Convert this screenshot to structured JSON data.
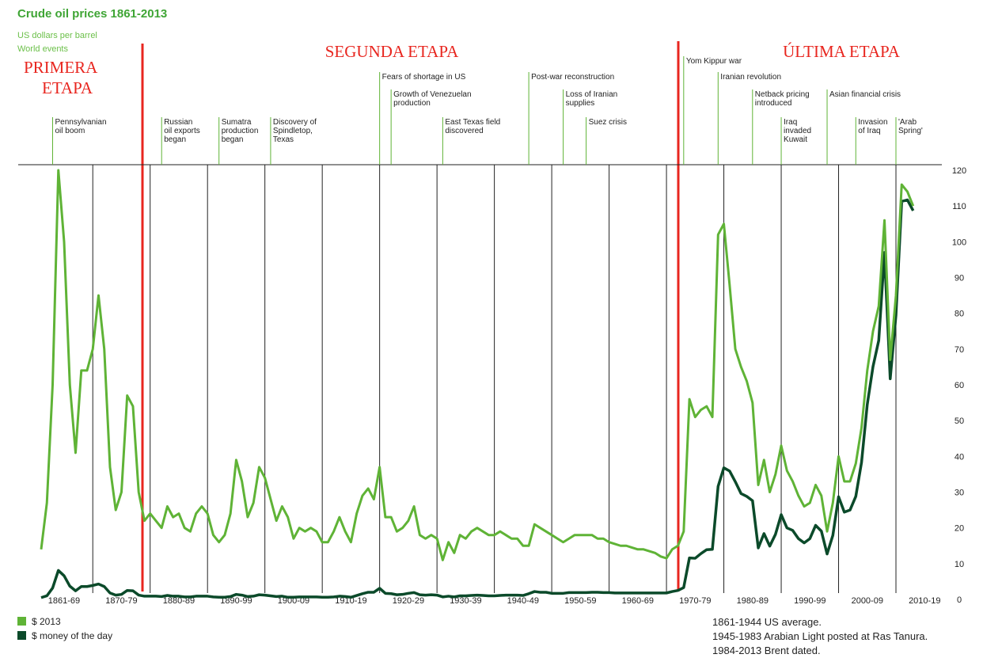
{
  "chart_data": {
    "type": "line",
    "title": "Crude oil prices 1861-2013",
    "subtitle": "US dollars per barrel",
    "subtitle2": "World events",
    "x": [
      1861,
      1862,
      1863,
      1864,
      1865,
      1866,
      1867,
      1868,
      1869,
      1870,
      1871,
      1872,
      1873,
      1874,
      1875,
      1876,
      1877,
      1878,
      1879,
      1880,
      1881,
      1882,
      1883,
      1884,
      1885,
      1886,
      1887,
      1888,
      1889,
      1890,
      1891,
      1892,
      1893,
      1894,
      1895,
      1896,
      1897,
      1898,
      1899,
      1900,
      1901,
      1902,
      1903,
      1904,
      1905,
      1906,
      1907,
      1908,
      1909,
      1910,
      1911,
      1912,
      1913,
      1914,
      1915,
      1916,
      1917,
      1918,
      1919,
      1920,
      1921,
      1922,
      1923,
      1924,
      1925,
      1926,
      1927,
      1928,
      1929,
      1930,
      1931,
      1932,
      1933,
      1934,
      1935,
      1936,
      1937,
      1938,
      1939,
      1940,
      1941,
      1942,
      1943,
      1944,
      1945,
      1946,
      1947,
      1948,
      1949,
      1950,
      1951,
      1952,
      1953,
      1954,
      1955,
      1956,
      1957,
      1958,
      1959,
      1960,
      1961,
      1962,
      1963,
      1964,
      1965,
      1966,
      1967,
      1968,
      1969,
      1970,
      1971,
      1972,
      1973,
      1974,
      1975,
      1976,
      1977,
      1978,
      1979,
      1980,
      1981,
      1982,
      1983,
      1984,
      1985,
      1986,
      1987,
      1988,
      1989,
      1990,
      1991,
      1992,
      1993,
      1994,
      1995,
      1996,
      1997,
      1998,
      1999,
      2000,
      2001,
      2002,
      2003,
      2004,
      2005,
      2006,
      2007,
      2008,
      2009,
      2010,
      2011,
      2012,
      2013
    ],
    "series": [
      {
        "name": "$ 2013",
        "color": "#5fb336",
        "values": [
          14,
          27,
          60,
          120,
          100,
          60,
          41,
          64,
          64,
          70,
          85,
          70,
          37,
          25,
          30,
          57,
          54,
          30,
          22,
          24,
          22,
          20,
          26,
          23,
          24,
          20,
          19,
          24,
          26,
          24,
          18,
          16,
          18,
          24,
          39,
          33,
          23,
          27,
          37,
          34,
          28,
          22,
          26,
          23,
          17,
          20,
          19,
          20,
          19,
          16,
          16,
          19,
          23,
          19,
          16,
          24,
          29,
          31,
          28,
          37,
          23,
          23,
          19,
          20,
          22,
          26,
          18,
          17,
          18,
          17,
          11,
          16,
          13,
          18,
          17,
          19,
          20,
          19,
          18,
          18,
          19,
          18,
          17,
          17,
          15,
          15,
          21,
          20,
          19,
          18,
          17,
          16,
          17,
          18,
          18,
          18,
          18,
          17,
          17,
          16,
          15.5,
          15,
          15,
          14.5,
          14,
          14,
          13.5,
          13,
          12,
          11.5,
          14,
          15,
          19,
          56,
          51,
          53,
          54,
          51,
          102,
          105,
          88,
          70,
          65,
          61,
          55,
          32,
          39,
          30,
          35,
          43,
          36,
          33,
          29,
          26,
          27,
          32,
          29,
          19,
          27,
          40,
          33,
          33,
          38,
          48,
          64,
          75,
          82,
          106,
          67,
          85,
          116,
          114,
          110
        ]
      },
      {
        "name": "$ money of the day",
        "color": "#0b4a2a",
        "values": [
          0.5,
          1,
          3.2,
          8.1,
          6.6,
          3.7,
          2.4,
          3.6,
          3.6,
          3.9,
          4.3,
          3.6,
          1.8,
          1.2,
          1.4,
          2.5,
          2.4,
          1.2,
          0.9,
          0.9,
          0.9,
          0.8,
          1.1,
          0.9,
          0.9,
          0.7,
          0.7,
          0.9,
          0.9,
          0.9,
          0.7,
          0.6,
          0.6,
          0.8,
          1.4,
          1.2,
          0.8,
          0.9,
          1.3,
          1.2,
          1,
          0.8,
          0.9,
          0.6,
          0.6,
          0.7,
          0.7,
          0.7,
          0.7,
          0.6,
          0.6,
          0.7,
          0.9,
          0.8,
          0.6,
          1.1,
          1.6,
          2,
          2,
          3.1,
          1.7,
          1.6,
          1.3,
          1.4,
          1.7,
          1.9,
          1.3,
          1.2,
          1.3,
          1.2,
          0.7,
          0.9,
          0.7,
          1,
          1,
          1.1,
          1.2,
          1.1,
          1,
          1,
          1.1,
          1.2,
          1.2,
          1.2,
          1.1,
          1.6,
          2.2,
          2,
          2,
          1.7,
          1.7,
          1.7,
          1.9,
          1.9,
          1.9,
          1.9,
          2,
          2,
          1.9,
          1.9,
          1.8,
          1.8,
          1.8,
          1.8,
          1.8,
          1.8,
          1.8,
          1.8,
          1.8,
          1.8,
          2.2,
          2.5,
          3.3,
          11.6,
          11.5,
          12.8,
          13.9,
          14,
          31.6,
          36.8,
          35.9,
          32.9,
          29.6,
          28.8,
          27.6,
          14.4,
          18.4,
          14.9,
          18.2,
          23.7,
          20,
          19.3,
          17,
          15.8,
          17,
          20.7,
          19.1,
          12.7,
          17.9,
          28.7,
          24.4,
          25,
          28.8,
          38.3,
          54.5,
          65.1,
          72.4,
          97,
          61.7,
          79.5,
          111.3,
          111.7,
          108.7
        ]
      }
    ],
    "xlim": [
      1857,
      2018
    ],
    "xticks": [
      {
        "value": 1865,
        "label": "1861-69"
      },
      {
        "value": 1875,
        "label": "1870-79"
      },
      {
        "value": 1885,
        "label": "1880-89"
      },
      {
        "value": 1895,
        "label": "1890-99"
      },
      {
        "value": 1905,
        "label": "1900-09"
      },
      {
        "value": 1915,
        "label": "1910-19"
      },
      {
        "value": 1925,
        "label": "1920-29"
      },
      {
        "value": 1935,
        "label": "1930-39"
      },
      {
        "value": 1945,
        "label": "1940-49"
      },
      {
        "value": 1955,
        "label": "1950-59"
      },
      {
        "value": 1965,
        "label": "1960-69"
      },
      {
        "value": 1975,
        "label": "1970-79"
      },
      {
        "value": 1985,
        "label": "1980-89"
      },
      {
        "value": 1995,
        "label": "1990-99"
      },
      {
        "value": 2005,
        "label": "2000-09"
      },
      {
        "value": 2015,
        "label": "2010-19"
      }
    ],
    "xgrid": [
      1870,
      1880,
      1890,
      1900,
      1910,
      1920,
      1930,
      1940,
      1950,
      1960,
      1970,
      1980,
      1990,
      2000,
      2010
    ],
    "ylim": [
      0,
      120
    ],
    "yticks": [
      0,
      10,
      20,
      30,
      40,
      50,
      60,
      70,
      80,
      90,
      100,
      110,
      120
    ],
    "events": [
      {
        "year": 1863,
        "lines": [
          "Pennsylvanian",
          "oil boom"
        ]
      },
      {
        "year": 1882,
        "lines": [
          "Russian",
          "oil exports",
          "began"
        ]
      },
      {
        "year": 1892,
        "lines": [
          "Sumatra",
          "production",
          "began"
        ]
      },
      {
        "year": 1901,
        "lines": [
          "Discovery of",
          "Spindletop,",
          "Texas"
        ]
      },
      {
        "year": 1920,
        "lines": [
          "Fears of shortage in US"
        ]
      },
      {
        "year": 1922,
        "lines": [
          "Growth of Venezuelan",
          "production"
        ]
      },
      {
        "year": 1931,
        "lines": [
          "East Texas field",
          "discovered"
        ]
      },
      {
        "year": 1946,
        "lines": [
          "Post-war reconstruction"
        ]
      },
      {
        "year": 1952,
        "lines": [
          "Loss of Iranian",
          "supplies"
        ]
      },
      {
        "year": 1956,
        "lines": [
          "Suez crisis"
        ]
      },
      {
        "year": 1973,
        "lines": [
          "Yom Kippur war"
        ]
      },
      {
        "year": 1979,
        "lines": [
          "Iranian revolution"
        ]
      },
      {
        "year": 1985,
        "lines": [
          "Netback pricing",
          "introduced"
        ]
      },
      {
        "year": 1990,
        "lines": [
          "Iraq",
          "invaded",
          "Kuwait"
        ]
      },
      {
        "year": 1998,
        "lines": [
          "Asian financial crisis"
        ]
      },
      {
        "year": 2003,
        "lines": [
          "Invasion",
          "of Iraq"
        ]
      },
      {
        "year": 2010,
        "lines": [
          "'Arab",
          "Spring'"
        ]
      }
    ],
    "stages": [
      {
        "lines": [
          "PRIMERA",
          "ETAPA"
        ]
      },
      {
        "lines": [
          "SEGUNDA ETAPA"
        ]
      },
      {
        "lines": [
          "ÚLTIMA ETAPA"
        ]
      }
    ],
    "notes": [
      "1861-1944 US average.",
      "1945-1983 Arabian Light posted at Ras Tanura.",
      "1984-2013 Brent dated."
    ]
  }
}
